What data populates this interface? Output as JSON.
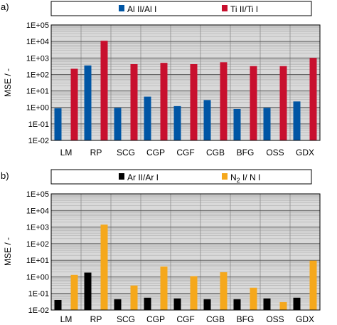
{
  "chart_data": [
    {
      "panel_label": "a)",
      "type": "bar",
      "scale": "log",
      "ylabel": "MSE / -",
      "ylim": [
        0.01,
        100000
      ],
      "yticks": [
        "1E-02",
        "1E-01",
        "1E+00",
        "1E+01",
        "1E+02",
        "1E+03",
        "1E+04",
        "1E+05"
      ],
      "categories": [
        "LM",
        "RP",
        "SCG",
        "CGP",
        "CGF",
        "CGB",
        "BFG",
        "OSS",
        "GDX"
      ],
      "grid": true,
      "legend_position": "top",
      "series": [
        {
          "name": "Al II/Al I",
          "color": "#0055a4",
          "values": [
            0.9,
            350,
            0.95,
            4.5,
            1.2,
            2.8,
            0.8,
            0.95,
            2.3
          ]
        },
        {
          "name": "Ti II/Ti I",
          "color": "#c8102e",
          "values": [
            220,
            11000,
            420,
            500,
            420,
            550,
            320,
            320,
            1000
          ]
        }
      ]
    },
    {
      "panel_label": "b)",
      "type": "bar",
      "scale": "log",
      "ylabel": "MSE / -",
      "ylim": [
        0.01,
        100000
      ],
      "yticks": [
        "1E-02",
        "1E-01",
        "1E+00",
        "1E+01",
        "1E+02",
        "1E+03",
        "1E+04",
        "1E+05"
      ],
      "categories": [
        "LM",
        "RP",
        "SCG",
        "CGP",
        "CGF",
        "CGB",
        "BFG",
        "OSS",
        "GDX"
      ],
      "grid": true,
      "legend_position": "top",
      "series": [
        {
          "name": "Ar II/Ar I",
          "color": "#000000",
          "values": [
            0.04,
            1.8,
            0.045,
            0.055,
            0.05,
            0.045,
            0.045,
            0.05,
            0.055
          ]
        },
        {
          "name": "N2 I/ N I",
          "name_parts": [
            "N",
            "2",
            " I/ N I"
          ],
          "color": "#f5a81c",
          "values": [
            1.3,
            1400,
            0.3,
            4.2,
            1.1,
            1.9,
            0.22,
            0.03,
            9.5
          ]
        }
      ]
    }
  ]
}
